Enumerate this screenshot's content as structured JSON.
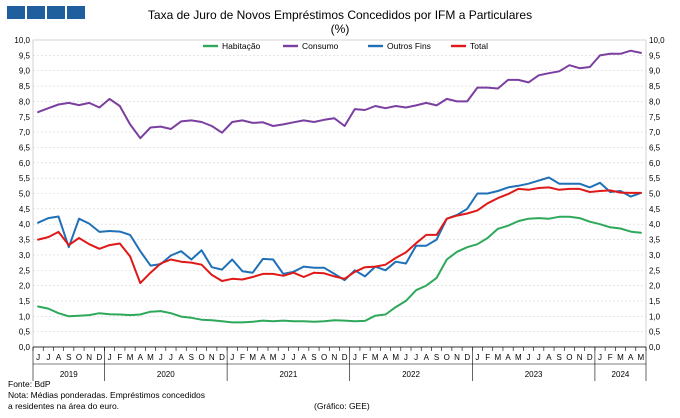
{
  "chart_data": {
    "type": "line",
    "title": "Taxa de Juro de Novos Empréstimos Concedidos por IFM a Particulares",
    "subtitle": "(%)",
    "ylim": [
      0,
      10
    ],
    "yticks": [
      "0,0",
      "0,5",
      "1,0",
      "1,5",
      "2,0",
      "2,5",
      "3,0",
      "3,5",
      "4,0",
      "4,5",
      "5,0",
      "5,5",
      "6,0",
      "6,5",
      "7,0",
      "7,5",
      "8,0",
      "8,5",
      "9,0",
      "9,5",
      "10,0"
    ],
    "month_labels": [
      "J",
      "J",
      "A",
      "S",
      "O",
      "N",
      "D",
      "J",
      "F",
      "M",
      "A",
      "M",
      "J",
      "J",
      "A",
      "S",
      "O",
      "N",
      "D",
      "J",
      "F",
      "M",
      "A",
      "M",
      "J",
      "J",
      "A",
      "S",
      "O",
      "N",
      "D",
      "J",
      "F",
      "M",
      "A",
      "M",
      "J",
      "J",
      "A",
      "S",
      "O",
      "N",
      "D",
      "J",
      "F",
      "M",
      "A",
      "M",
      "J",
      "J",
      "A",
      "S",
      "O",
      "N",
      "D",
      "J",
      "F",
      "M",
      "A",
      "M"
    ],
    "years": [
      {
        "label": "2019",
        "start": 0,
        "end": 7
      },
      {
        "label": "2020",
        "start": 7,
        "end": 19
      },
      {
        "label": "2021",
        "start": 19,
        "end": 31
      },
      {
        "label": "2022",
        "start": 31,
        "end": 43
      },
      {
        "label": "2023",
        "start": 43,
        "end": 55
      },
      {
        "label": "2024",
        "start": 55,
        "end": 60
      }
    ],
    "legend_position": "top",
    "grid": true,
    "series": [
      {
        "name": "Habitação",
        "color": "#2ea85a",
        "values": [
          1.32,
          1.25,
          1.1,
          1.0,
          1.02,
          1.04,
          1.1,
          1.07,
          1.06,
          1.04,
          1.06,
          1.15,
          1.17,
          1.1,
          0.99,
          0.95,
          0.89,
          0.87,
          0.84,
          0.8,
          0.8,
          0.82,
          0.86,
          0.84,
          0.86,
          0.84,
          0.84,
          0.82,
          0.84,
          0.87,
          0.86,
          0.84,
          0.85,
          1.02,
          1.06,
          1.3,
          1.5,
          1.85,
          2.0,
          2.25,
          2.85,
          3.1,
          3.25,
          3.35,
          3.55,
          3.85,
          3.95,
          4.1,
          4.18,
          4.2,
          4.18,
          4.24,
          4.24,
          4.2,
          4.08,
          4.0,
          3.9,
          3.86,
          3.76,
          3.72
        ]
      },
      {
        "name": "Consumo",
        "color": "#7b3fa0",
        "values": [
          7.65,
          7.78,
          7.9,
          7.95,
          7.88,
          7.95,
          7.8,
          8.08,
          7.85,
          7.25,
          6.8,
          7.15,
          7.18,
          7.1,
          7.35,
          7.38,
          7.33,
          7.2,
          6.98,
          7.33,
          7.38,
          7.3,
          7.32,
          7.2,
          7.25,
          7.32,
          7.38,
          7.33,
          7.4,
          7.45,
          7.2,
          7.75,
          7.72,
          7.85,
          7.78,
          7.85,
          7.8,
          7.87,
          7.95,
          7.87,
          8.08,
          8.0,
          8.0,
          8.45,
          8.45,
          8.42,
          8.7,
          8.7,
          8.62,
          8.85,
          8.92,
          8.98,
          9.18,
          9.08,
          9.12,
          9.5,
          9.55,
          9.55,
          9.65,
          9.58
        ]
      },
      {
        "name": "Outros Fins",
        "color": "#2070b8",
        "values": [
          4.05,
          4.2,
          4.25,
          3.25,
          4.18,
          4.02,
          3.75,
          3.78,
          3.76,
          3.65,
          3.12,
          2.65,
          2.7,
          2.98,
          3.12,
          2.85,
          3.15,
          2.6,
          2.52,
          2.85,
          2.47,
          2.42,
          2.87,
          2.85,
          2.38,
          2.45,
          2.62,
          2.58,
          2.58,
          2.38,
          2.18,
          2.5,
          2.3,
          2.62,
          2.5,
          2.78,
          2.72,
          3.3,
          3.3,
          3.5,
          4.18,
          4.3,
          4.5,
          5.0,
          5.0,
          5.08,
          5.2,
          5.25,
          5.32,
          5.42,
          5.52,
          5.32,
          5.32,
          5.32,
          5.2,
          5.35,
          5.05,
          5.08,
          4.9,
          5.02
        ]
      },
      {
        "name": "Total",
        "color": "#e01818",
        "values": [
          3.5,
          3.58,
          3.75,
          3.32,
          3.55,
          3.35,
          3.2,
          3.32,
          3.37,
          2.95,
          2.08,
          2.42,
          2.72,
          2.85,
          2.78,
          2.75,
          2.68,
          2.35,
          2.15,
          2.22,
          2.2,
          2.28,
          2.38,
          2.38,
          2.32,
          2.42,
          2.28,
          2.42,
          2.4,
          2.3,
          2.22,
          2.45,
          2.6,
          2.62,
          2.68,
          2.9,
          3.08,
          3.38,
          3.65,
          3.65,
          4.18,
          4.28,
          4.35,
          4.45,
          4.68,
          4.85,
          4.98,
          5.15,
          5.12,
          5.18,
          5.2,
          5.12,
          5.15,
          5.15,
          5.05,
          5.08,
          5.1,
          5.03,
          5.02,
          5.02
        ]
      }
    ]
  },
  "footer": {
    "source": "Fonte: BdP",
    "note_line1": "Nota: Médias ponderadas. Empréstimos concedidos",
    "note_line2": "a residentes na área do euro.",
    "credit": "(Gráfico: GEE)"
  }
}
